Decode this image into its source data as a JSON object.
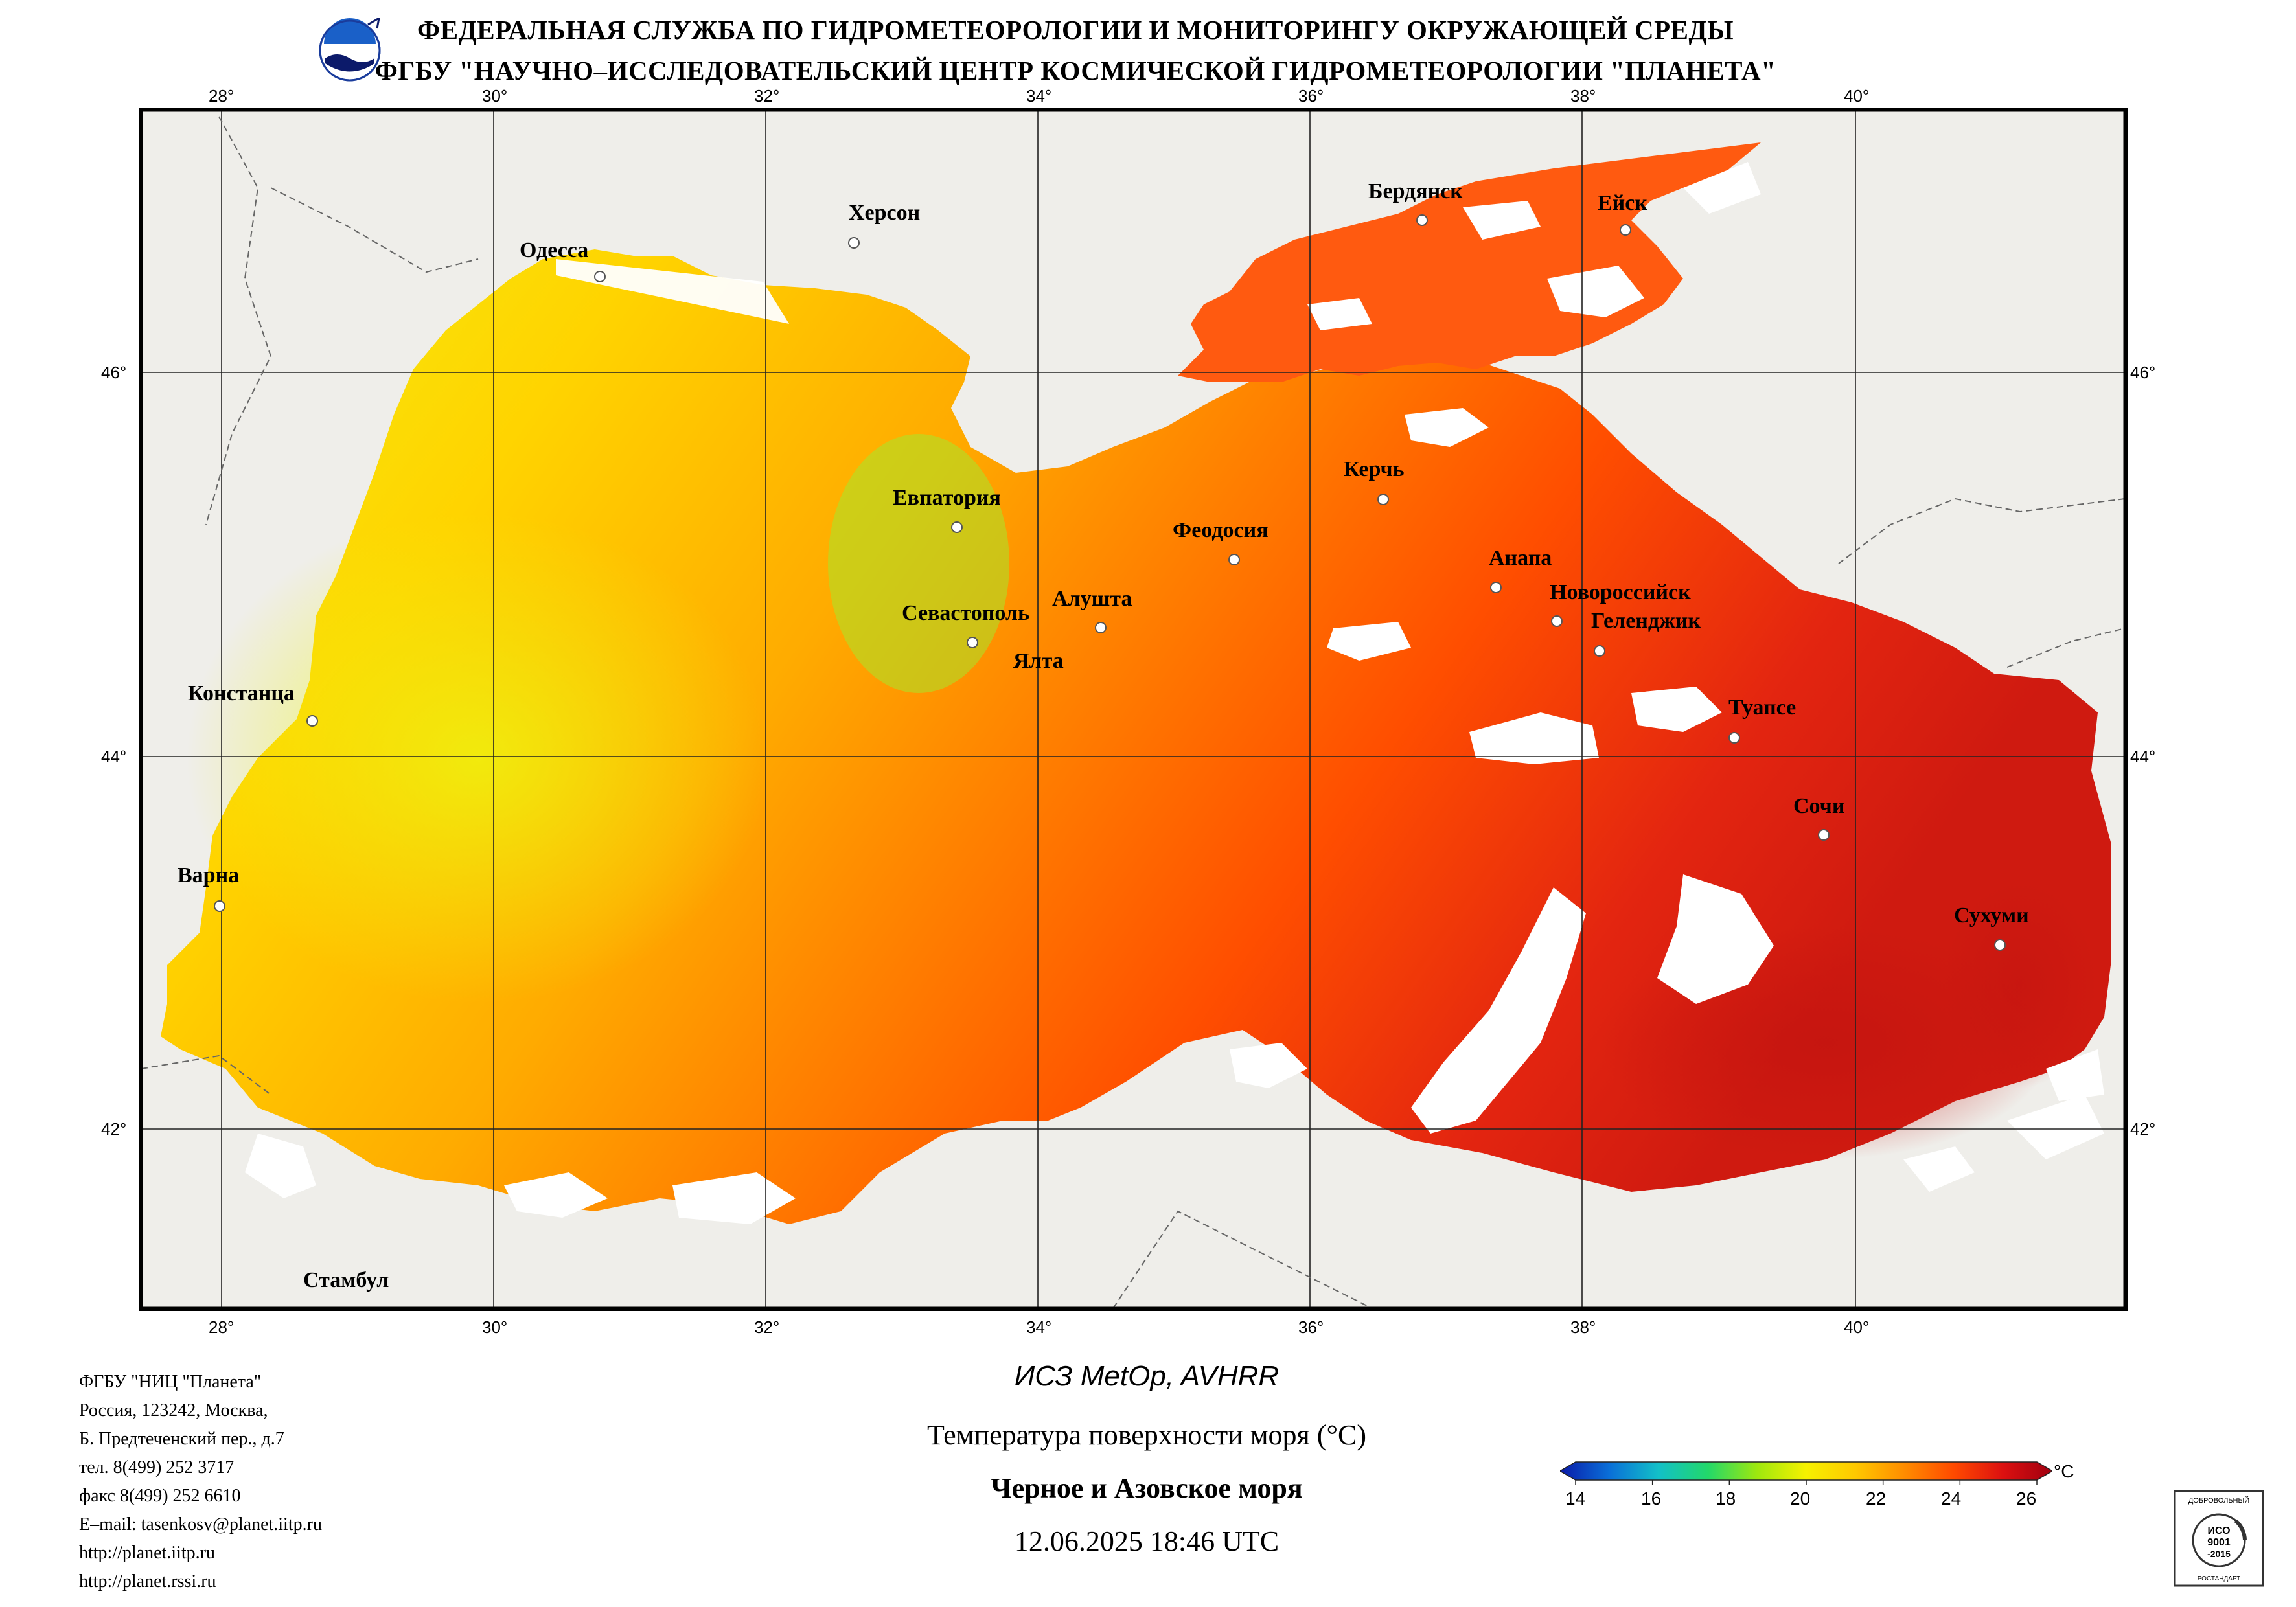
{
  "header": {
    "line1": "ФЕДЕРАЛЬНАЯ СЛУЖБА ПО ГИДРОМЕТЕОРОЛОГИИ И МОНИТОРИНГУ ОКРУЖАЮЩЕЙ СРЕДЫ",
    "line2": "ФГБУ \"НАУЧНО–ИССЛЕДОВАТЕЛЬСКИЙ ЦЕНТР КОСМИЧЕСКОЙ ГИДРОМЕТЕОРОЛОГИИ \"ПЛАНЕТА\""
  },
  "axes": {
    "lon_ticks": [
      "28°",
      "30°",
      "32°",
      "34°",
      "36°",
      "38°",
      "40°"
    ],
    "lat_ticks": [
      "46°",
      "44°",
      "42°"
    ]
  },
  "cities": [
    {
      "name": "Одесса"
    },
    {
      "name": "Херсон"
    },
    {
      "name": "Бердянск"
    },
    {
      "name": "Ейск"
    },
    {
      "name": "Евпатория"
    },
    {
      "name": "Керчь"
    },
    {
      "name": "Феодосия"
    },
    {
      "name": "Анапа"
    },
    {
      "name": "Алушта"
    },
    {
      "name": "Севастополь"
    },
    {
      "name": "Новороссийск"
    },
    {
      "name": "Геленджик"
    },
    {
      "name": "Ялта"
    },
    {
      "name": "Констанца"
    },
    {
      "name": "Туапсе"
    },
    {
      "name": "Сочи"
    },
    {
      "name": "Варна"
    },
    {
      "name": "Сухуми"
    },
    {
      "name": "Стамбул"
    }
  ],
  "contact": [
    "ФГБУ \"НИЦ \"Планета\"",
    "Россия, 123242, Москва,",
    "Б. Предтеченский пер., д.7",
    "тел. 8(499) 252 3717",
    "факс 8(499) 252 6610",
    "E–mail: tasenkosv@planet.iitp.ru",
    "http://planet.iitp.ru",
    "http://planet.rssi.ru"
  ],
  "product": {
    "satellite": "ИСЗ MetOp, AVHRR",
    "parameter": "Температура поверхности моря (°C)",
    "region": "Черное и Азовское моря",
    "datetime": "12.06.2025 18:46 UTC"
  },
  "colorbar": {
    "ticks": [
      "14",
      "16",
      "18",
      "20",
      "22",
      "24",
      "26"
    ],
    "unit": "°C",
    "colors": [
      "#0a1aa8",
      "#0a6fd8",
      "#12c0c8",
      "#22d86a",
      "#9ee80e",
      "#f6f100",
      "#ffc800",
      "#ff8c00",
      "#ff4a00",
      "#dc1010",
      "#a00010"
    ]
  },
  "map_colors": {
    "land": "#efeeea",
    "cloud": "#ffffff",
    "cold": "#f0ec10",
    "mid": "#ffb300",
    "warm": "#ff5a00",
    "hot": "#d81810"
  },
  "logos": {
    "left": "planeta-logo",
    "right_text": [
      "ДОБРОВОЛЬНЫЙ",
      "ИСО",
      "9001",
      "-2015",
      "РОСТАНДАРТ"
    ]
  }
}
